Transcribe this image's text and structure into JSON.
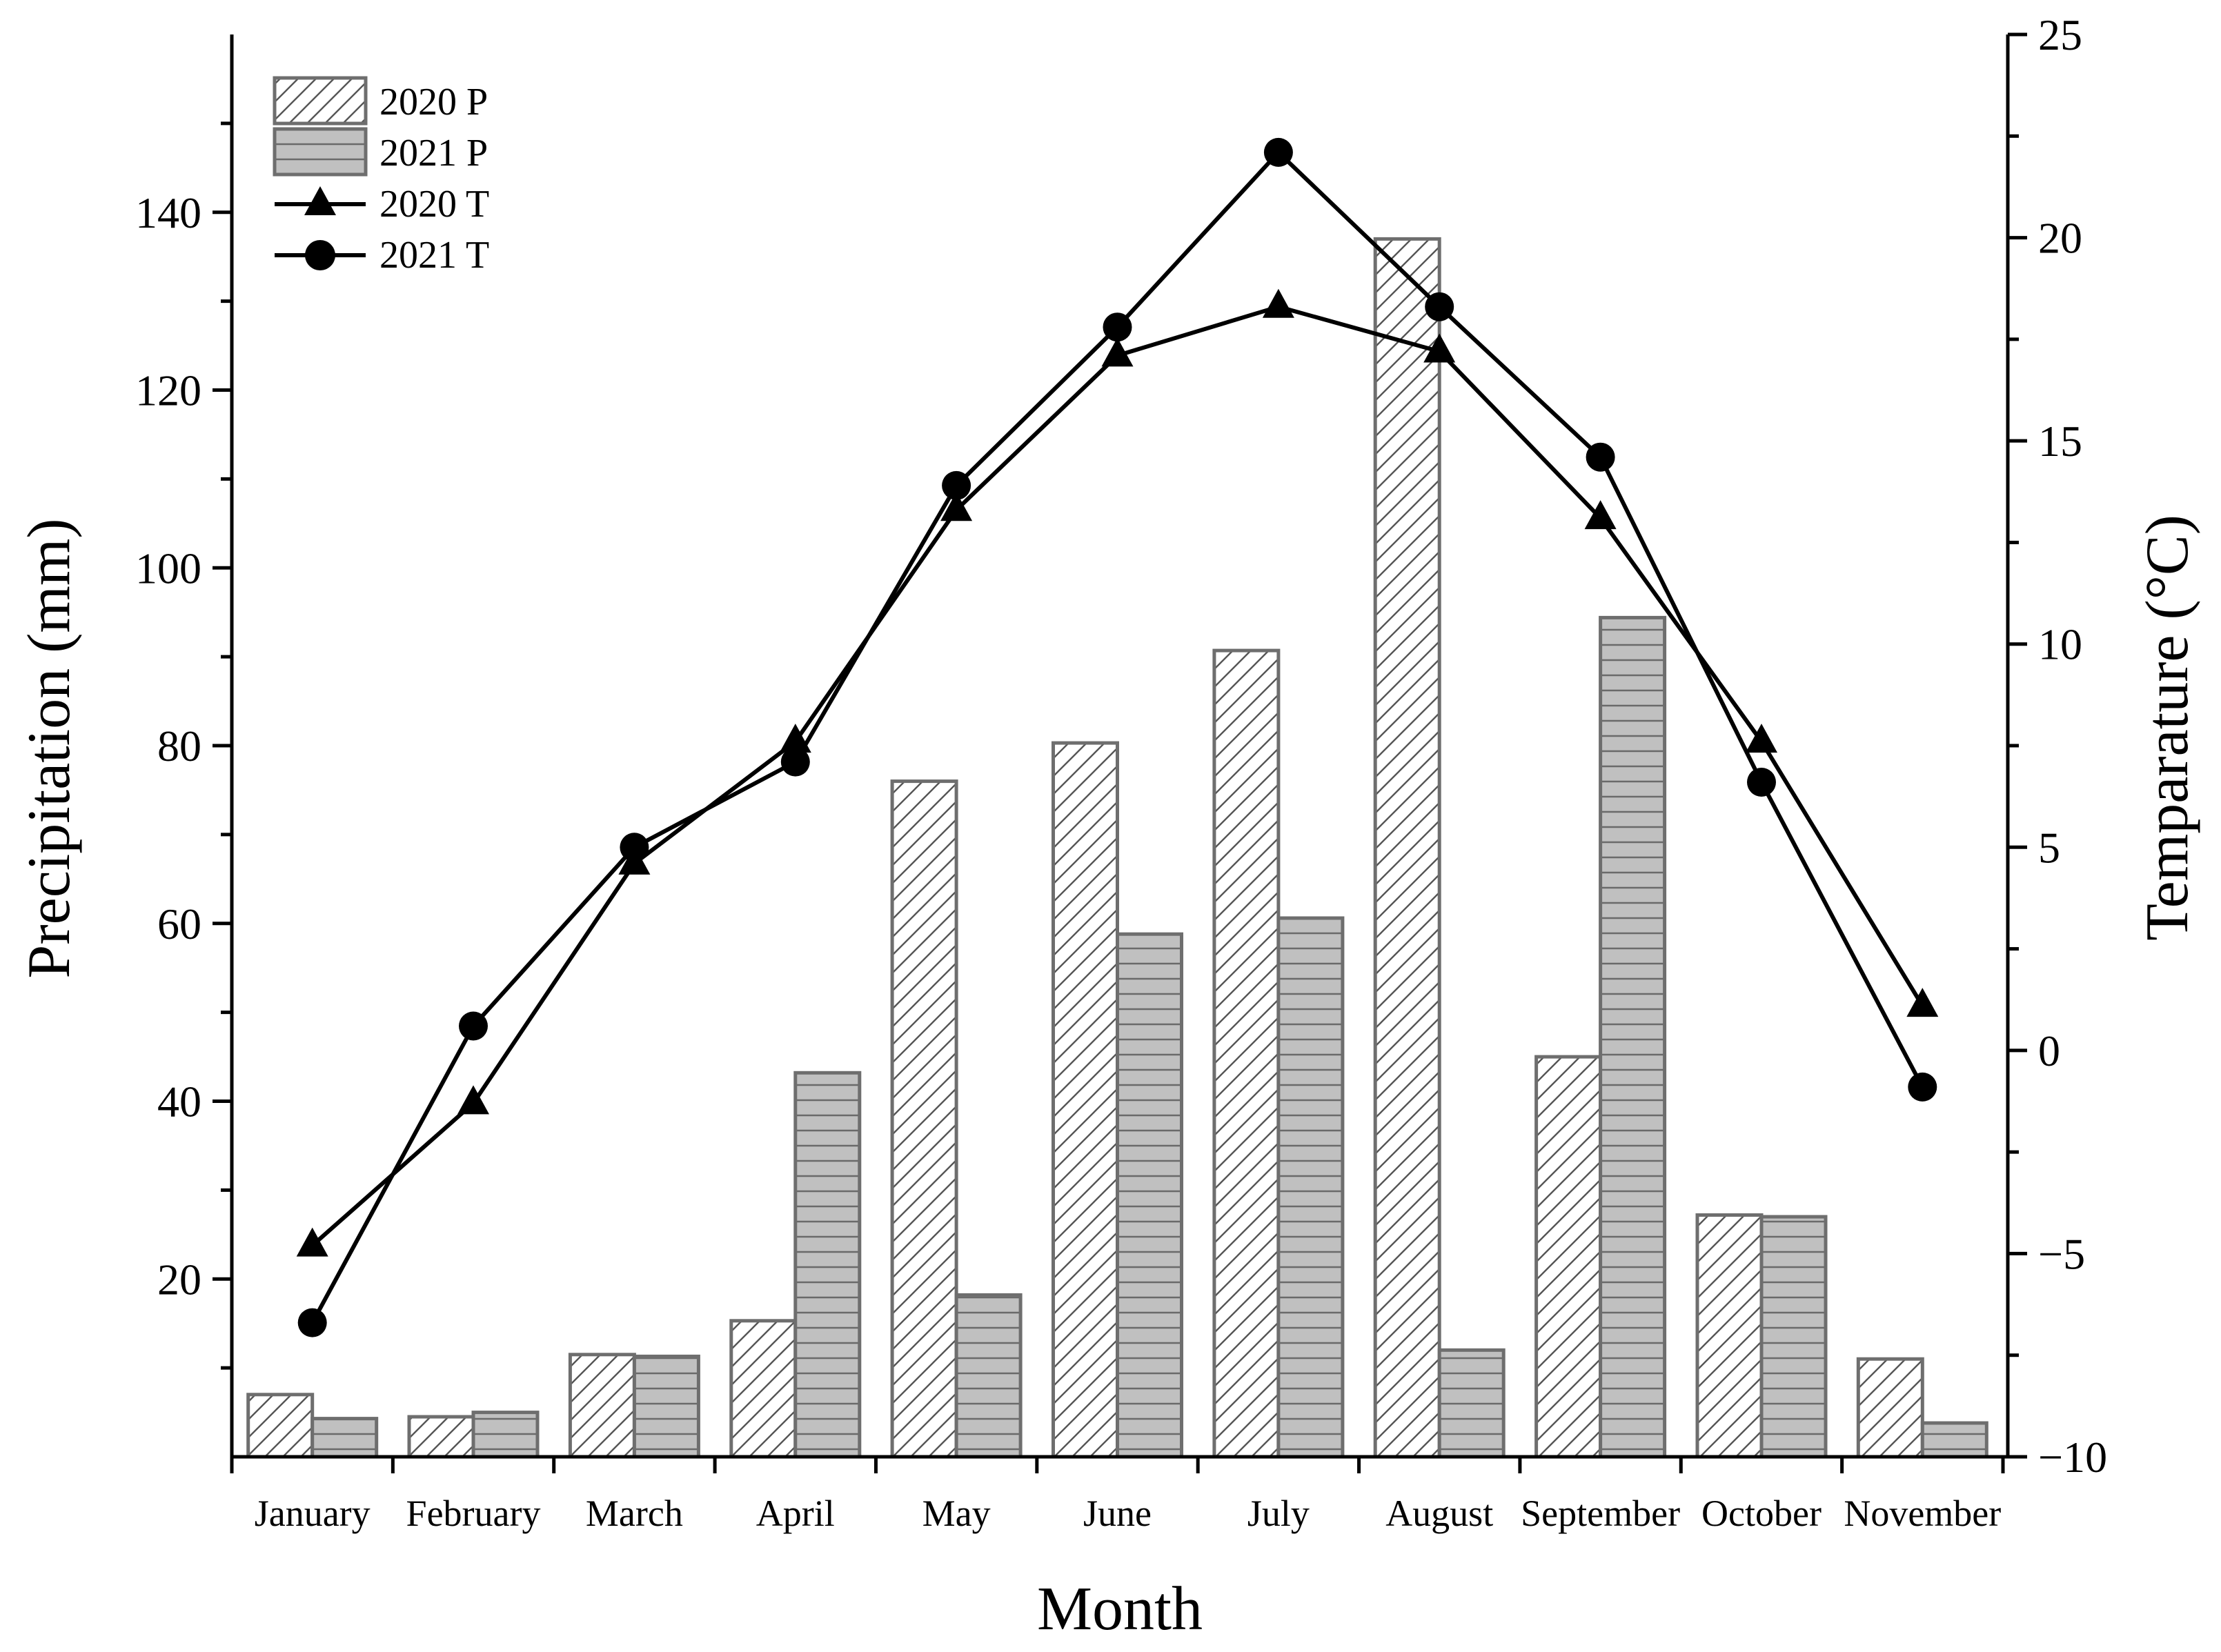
{
  "chart_data": {
    "type": "bar+line",
    "title": "",
    "xlabel": "Month",
    "ylabel": "Precipitation (mm)",
    "y2label": "Temparature (°C)",
    "categories": [
      "January",
      "February",
      "March",
      "April",
      "May",
      "June",
      "July",
      "August",
      "September",
      "October",
      "November"
    ],
    "ylim": [
      0,
      160
    ],
    "y_ticks": [
      20,
      40,
      60,
      80,
      100,
      120,
      140
    ],
    "y2lim": [
      -10,
      25
    ],
    "y2_ticks": [
      -10,
      -5,
      0,
      5,
      10,
      15,
      20,
      25
    ],
    "y2_tick_labels": [
      "−10",
      "−5",
      "0",
      "5",
      "10",
      "15",
      "20",
      "25"
    ],
    "bar_series": [
      {
        "name": "2020 P",
        "pattern": "diagonal-hatch",
        "values": [
          7,
          4.5,
          11.5,
          15.3,
          76,
          80.3,
          90.7,
          137,
          45,
          27.2,
          11
        ]
      },
      {
        "name": "2021 P",
        "pattern": "horizontal-hatch-gray",
        "values": [
          4.3,
          5,
          11.3,
          43.2,
          18.2,
          58.8,
          60.6,
          12,
          94.4,
          27,
          3.8
        ]
      }
    ],
    "line_series": [
      {
        "name": "2020 T",
        "marker": "triangle",
        "values": [
          -4.8,
          -1.3,
          4.6,
          7.6,
          13.3,
          17.1,
          18.3,
          17.2,
          13.1,
          7.6,
          1.1
        ]
      },
      {
        "name": "2021 T",
        "marker": "circle",
        "values": [
          -6.7,
          0.6,
          5,
          7.1,
          13.9,
          17.8,
          22.1,
          18.3,
          14.6,
          6.6,
          -0.9
        ]
      }
    ],
    "legend_position": "top-left",
    "grid": false
  },
  "colors": {
    "axis": "#000000",
    "bar_outline": "#6e6e6e",
    "bar2_fill": "#c0c0c0",
    "hatch": "#555555",
    "line": "#000000"
  }
}
